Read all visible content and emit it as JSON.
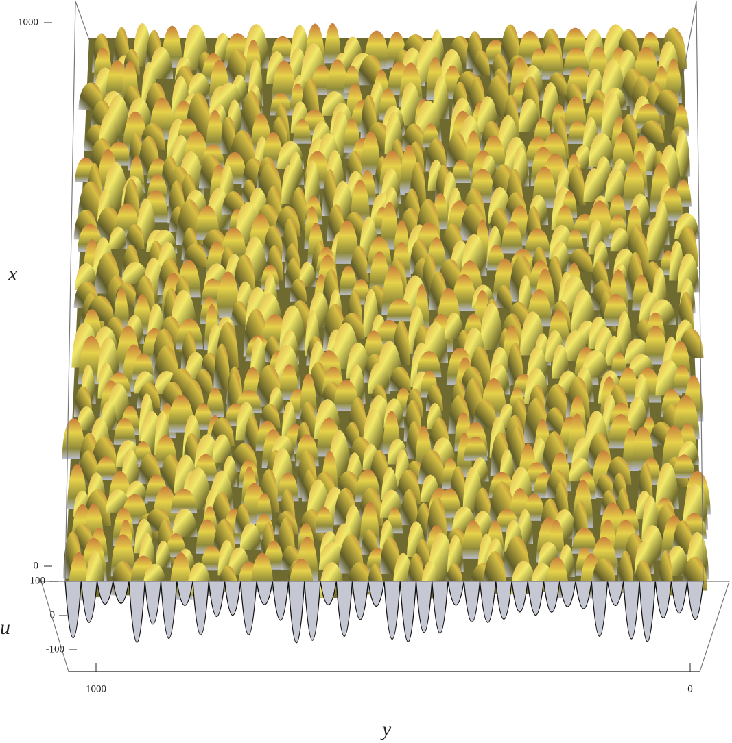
{
  "chart_data": {
    "type": "surface3d",
    "xlabel": "x",
    "ylabel": "y",
    "zlabel": "u",
    "xlim": [
      0,
      1000
    ],
    "xticks": [
      0,
      1000
    ],
    "ylim": [
      0,
      1000
    ],
    "yticks": [
      0,
      1000
    ],
    "zlim": [
      -100,
      100
    ],
    "zticks": [
      -100,
      0,
      100
    ]
  }
}
